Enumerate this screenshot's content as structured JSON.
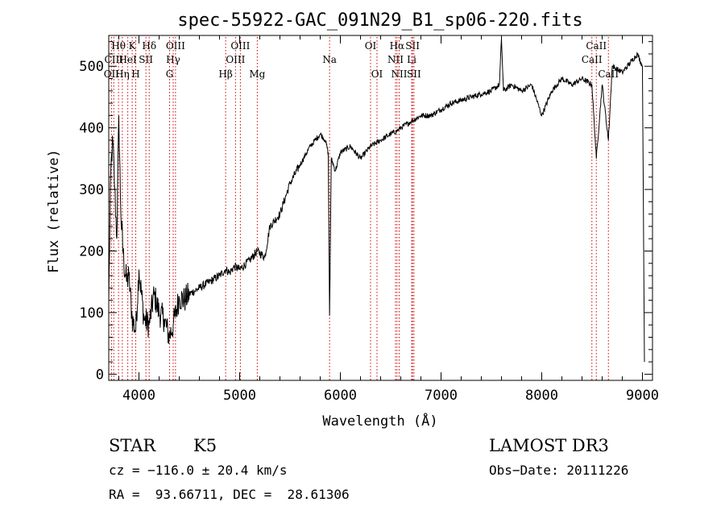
{
  "chart_data": {
    "type": "line",
    "title": "spec-55922-GAC_091N29_B1_sp06-220.fits",
    "xlabel": "Wavelength (Å)",
    "ylabel": "Flux (relative)",
    "xlim": [
      3700,
      9100
    ],
    "ylim": [
      -10,
      550
    ],
    "xticks": [
      4000,
      5000,
      6000,
      7000,
      8000,
      9000
    ],
    "yticks": [
      0,
      100,
      200,
      300,
      400,
      500
    ],
    "series": [
      {
        "name": "flux",
        "x": [
          3700,
          3720,
          3740,
          3760,
          3780,
          3800,
          3820,
          3850,
          3880,
          3900,
          3933,
          3968,
          4000,
          4050,
          4100,
          4150,
          4200,
          4250,
          4300,
          4340,
          4400,
          4450,
          4500,
          4550,
          4600,
          4700,
          4800,
          4861,
          4900,
          4950,
          5000,
          5100,
          5175,
          5250,
          5300,
          5400,
          5500,
          5600,
          5700,
          5800,
          5850,
          5880,
          5893,
          5910,
          5950,
          6000,
          6100,
          6200,
          6300,
          6400,
          6500,
          6563,
          6600,
          6700,
          6800,
          6900,
          7000,
          7100,
          7200,
          7300,
          7400,
          7500,
          7580,
          7600,
          7620,
          7700,
          7800,
          7900,
          8000,
          8100,
          8200,
          8300,
          8400,
          8498,
          8542,
          8600,
          8662,
          8700,
          8800,
          8900,
          8950,
          9000,
          9020
        ],
        "values": [
          120,
          330,
          380,
          300,
          220,
          420,
          260,
          180,
          150,
          160,
          90,
          70,
          170,
          90,
          80,
          130,
          100,
          90,
          60,
          80,
          125,
          120,
          130,
          135,
          140,
          150,
          160,
          170,
          165,
          175,
          170,
          185,
          200,
          190,
          240,
          260,
          310,
          340,
          370,
          390,
          380,
          360,
          95,
          350,
          330,
          360,
          370,
          350,
          370,
          380,
          390,
          395,
          400,
          410,
          420,
          420,
          430,
          440,
          445,
          450,
          455,
          460,
          470,
          545,
          460,
          470,
          460,
          470,
          420,
          460,
          480,
          470,
          480,
          470,
          350,
          470,
          380,
          500,
          490,
          510,
          520,
          500,
          20
        ]
      }
    ],
    "lines": {
      "top": [
        {
          "label": "Hθ",
          "x": 3797
        },
        {
          "label": "K",
          "x": 3933
        },
        {
          "label": "Hδ",
          "x": 4102
        },
        {
          "label": "OIII",
          "x": 4363
        },
        {
          "label": "OIII",
          "x": 5007
        },
        {
          "label": "OI",
          "x": 6300
        },
        {
          "label": "Hα",
          "x": 6563
        },
        {
          "label": "SII",
          "x": 6717
        },
        {
          "label": "CaII",
          "x": 8542
        }
      ],
      "mid": [
        {
          "label": "CIII",
          "x": 3750
        },
        {
          "label": "HeI",
          "x": 3889
        },
        {
          "label": "SII",
          "x": 4069
        },
        {
          "label": "Hγ",
          "x": 4340
        },
        {
          "label": "OIII",
          "x": 4959
        },
        {
          "label": "Na",
          "x": 5893
        },
        {
          "label": "NII",
          "x": 6548
        },
        {
          "label": "Li",
          "x": 6708
        },
        {
          "label": "CaII",
          "x": 8498
        }
      ],
      "bottom": [
        {
          "label": "OII",
          "x": 3727
        },
        {
          "label": "Hη",
          "x": 3835
        },
        {
          "label": "H",
          "x": 3968
        },
        {
          "label": "G",
          "x": 4304
        },
        {
          "label": "Hβ",
          "x": 4861
        },
        {
          "label": "Mg",
          "x": 5175
        },
        {
          "label": "OI",
          "x": 6364
        },
        {
          "label": "NII",
          "x": 6584
        },
        {
          "label": "SII",
          "x": 6731
        },
        {
          "label": "CaII",
          "x": 8662
        }
      ]
    },
    "line_color": "#d00000",
    "spectrum_color": "#000000"
  },
  "info": {
    "class": "STAR",
    "subclass": "K5",
    "survey": "LAMOST DR3",
    "cz": "cz = −116.0 ± 20.4 km/s",
    "obs_date": "Obs−Date: 20111226",
    "radec": "RA =  93.66711, DEC =  28.61306"
  }
}
